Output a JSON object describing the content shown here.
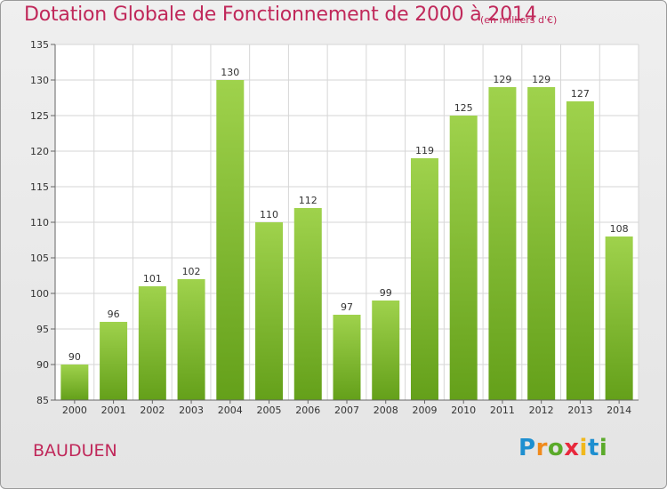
{
  "header": {
    "title": "Dotation Globale de Fonctionnement de 2000 à 2014",
    "unit": "(en milliers d'€)"
  },
  "footer": {
    "commune": "BAUDUEN",
    "logo_letters": [
      {
        "char": "P",
        "color": "#1e8fd0"
      },
      {
        "char": "r",
        "color": "#f08a1c"
      },
      {
        "char": "o",
        "color": "#5aaa2a"
      },
      {
        "char": "x",
        "color": "#e8283c"
      },
      {
        "char": "i",
        "color": "#f0b81c"
      },
      {
        "char": "t",
        "color": "#1e8fd0"
      },
      {
        "char": "i",
        "color": "#5aaa2a"
      }
    ]
  },
  "chart_data": {
    "type": "bar",
    "title": "Dotation Globale de Fonctionnement de 2000 à 2014",
    "subtitle": "(en milliers d'€)",
    "categories": [
      "2000",
      "2001",
      "2002",
      "2003",
      "2004",
      "2005",
      "2006",
      "2007",
      "2008",
      "2009",
      "2010",
      "2011",
      "2012",
      "2013",
      "2014"
    ],
    "values": [
      90,
      96,
      101,
      102,
      130,
      110,
      112,
      97,
      99,
      119,
      125,
      129,
      129,
      127,
      108
    ],
    "ylim": [
      85,
      135
    ],
    "yticks": [
      85,
      90,
      95,
      100,
      105,
      110,
      115,
      120,
      125,
      130,
      135
    ],
    "grid": true,
    "bar_color": "#8ac43c",
    "xlabel": "",
    "ylabel": ""
  }
}
